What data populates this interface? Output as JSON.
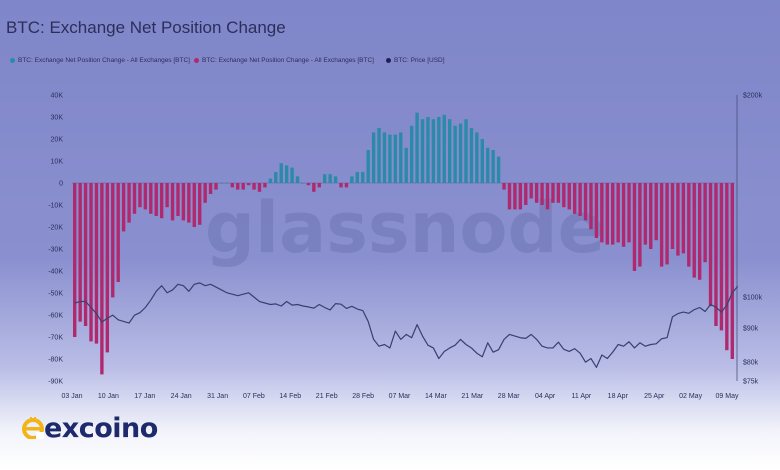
{
  "title": "BTC: Exchange Net Position Change",
  "legend": [
    {
      "label": "BTC: Exchange Net Position Change - All Exchanges [BTC]",
      "color": "#2a8aa8"
    },
    {
      "label": "BTC: Exchange Net Position Change - All Exchanges [BTC]",
      "color": "#b0286d"
    },
    {
      "label": "BTC: Price [USD]",
      "color": "#1f2250"
    }
  ],
  "watermark": "glassnode",
  "logo": {
    "text": "excoino",
    "accent": "#f2b416",
    "color": "#1d2a6b"
  },
  "chart_data": {
    "type": "bar",
    "colors": {
      "positive": "#2a8aa8",
      "negative": "#b0286d",
      "price": "#3b3f6e"
    },
    "x_tick_labels": [
      "03 Jan",
      "10 Jan",
      "17 Jan",
      "24 Jan",
      "31 Jan",
      "07 Feb",
      "14 Feb",
      "21 Feb",
      "28 Feb",
      "07 Mar",
      "14 Mar",
      "21 Mar",
      "28 Mar",
      "04 Apr",
      "11 Apr",
      "18 Apr",
      "25 Apr",
      "02 May",
      "09 May"
    ],
    "y_left": {
      "ticks": [
        40000,
        30000,
        20000,
        10000,
        0,
        -10000,
        -20000,
        -30000,
        -40000,
        -50000,
        -60000,
        -70000,
        -80000,
        -90000
      ],
      "tick_labels": [
        "40K",
        "30K",
        "20K",
        "10K",
        "0",
        "-10K",
        "-20K",
        "-30K",
        "-40K",
        "-50K",
        "-60K",
        "-70K",
        "-80K",
        "-90K"
      ],
      "range": [
        -90000,
        40000
      ]
    },
    "y_right": {
      "scale": "log",
      "range": [
        75000,
        200000
      ],
      "ticks": [
        200000,
        100000,
        90000,
        80000,
        75000
      ],
      "tick_labels": [
        "$200k",
        "$100k",
        "$90k",
        "$80k",
        "$75k"
      ]
    },
    "net_position_change": [
      -70000,
      -63000,
      -65000,
      -72000,
      -73000,
      -87000,
      -77000,
      -52000,
      -45000,
      -22000,
      -18000,
      -14000,
      -11000,
      -12000,
      -14000,
      -15000,
      -16000,
      -11000,
      -17000,
      -15000,
      -17000,
      -18000,
      -20000,
      -19000,
      -9000,
      -5000,
      -3000,
      0,
      0,
      -2000,
      -3000,
      -3000,
      -1000,
      -3000,
      -4000,
      -2000,
      2000,
      5000,
      9000,
      8000,
      7000,
      3000,
      0,
      -1000,
      -4000,
      -2000,
      4000,
      4000,
      3000,
      -2000,
      -2000,
      3000,
      5000,
      5000,
      15000,
      23000,
      25000,
      23000,
      22000,
      22000,
      23000,
      16000,
      26000,
      32000,
      29000,
      30000,
      29000,
      30000,
      31000,
      29000,
      26000,
      27000,
      29000,
      25000,
      23000,
      20000,
      16000,
      15000,
      12000,
      -3000,
      -12000,
      -12000,
      -12000,
      -10000,
      -7000,
      -9000,
      -10000,
      -12000,
      -9000,
      -9000,
      -11000,
      -12000,
      -14000,
      -15000,
      -17000,
      -21000,
      -25000,
      -27000,
      -28000,
      -28000,
      -27000,
      -29000,
      -27000,
      -40000,
      -38000,
      -28000,
      -30000,
      -26000,
      -38000,
      -37000,
      -30000,
      -33000,
      -32000,
      -38000,
      -43000,
      -44000,
      -36000,
      -56000,
      -65000,
      -67000,
      -76000,
      -80000
    ],
    "price": [
      98000,
      98500,
      98500,
      96500,
      94500,
      91800,
      93000,
      94000,
      92500,
      92000,
      91500,
      94000,
      94800,
      96500,
      99000,
      102000,
      104000,
      101500,
      102500,
      104500,
      104000,
      102000,
      104500,
      105000,
      104000,
      104500,
      103500,
      102500,
      101500,
      101000,
      100500,
      101000,
      101500,
      100000,
      98500,
      98000,
      97500,
      97700,
      97000,
      98500,
      97300,
      97500,
      97000,
      96700,
      96300,
      97500,
      96500,
      95700,
      97800,
      97600,
      96200,
      96900,
      96000,
      95500,
      92000,
      86500,
      84500,
      85000,
      84000,
      89000,
      86500,
      88000,
      87000,
      91000,
      87500,
      84800,
      84000,
      81000,
      83000,
      84000,
      84800,
      86500,
      85000,
      84000,
      82500,
      81500,
      85500,
      82800,
      83500,
      86500,
      88000,
      87500,
      87000,
      86800,
      88000,
      86500,
      84500,
      84000,
      84000,
      85700,
      83600,
      83000,
      83800,
      82500,
      80000,
      81000,
      78600,
      82000,
      81000,
      82800,
      85000,
      84500,
      85800,
      84000,
      85500,
      84500,
      85000,
      85200,
      86700,
      87000,
      93500,
      94500,
      95000,
      94600,
      95800,
      96500,
      95200,
      97500,
      96600,
      95000,
      97300,
      101500,
      103800
    ]
  }
}
